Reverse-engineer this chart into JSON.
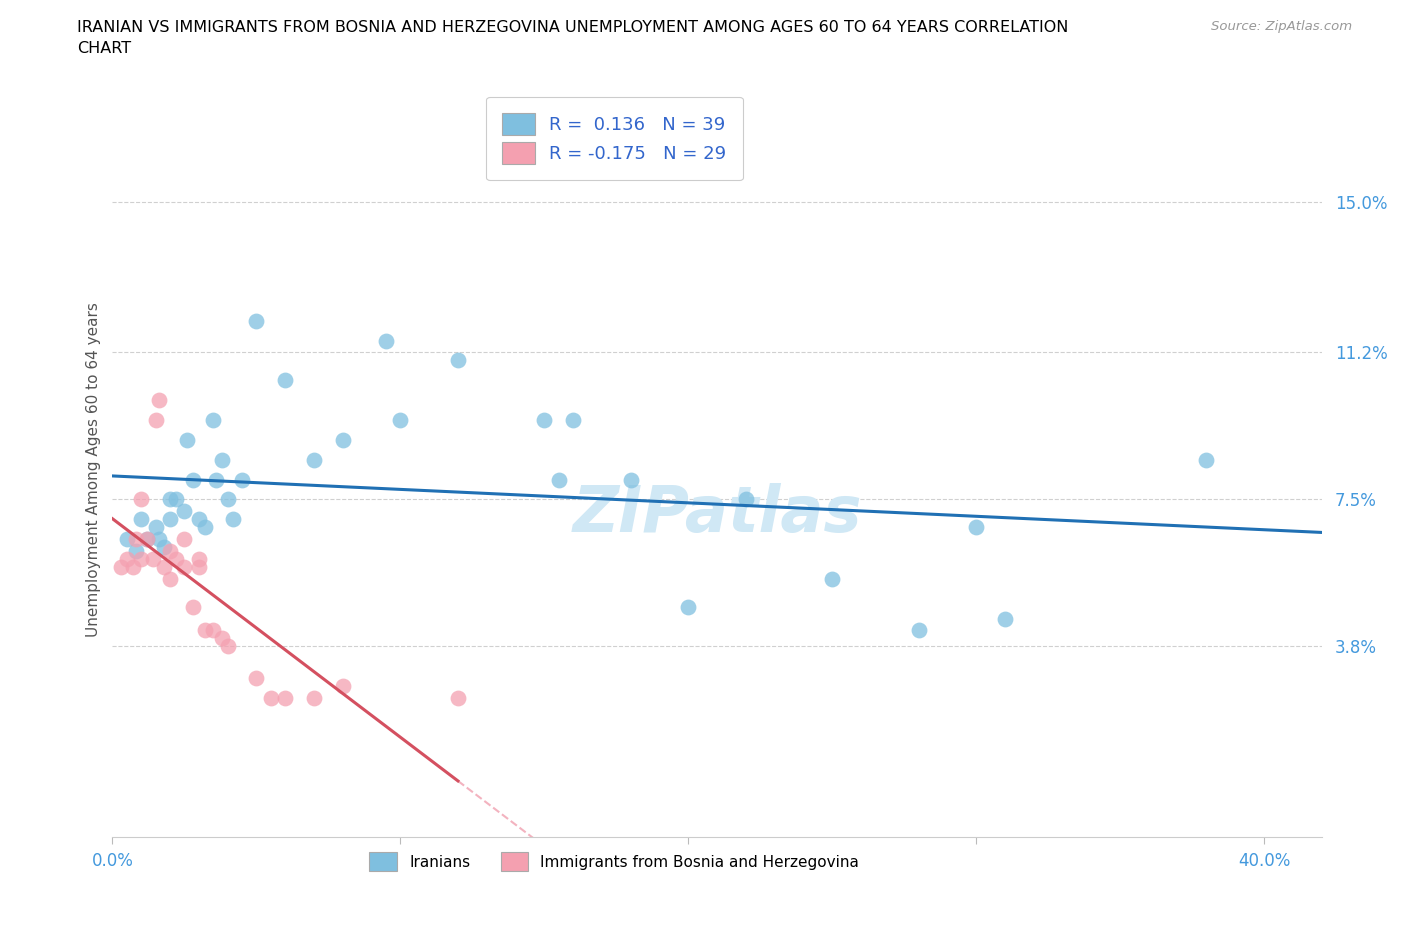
{
  "title_line1": "IRANIAN VS IMMIGRANTS FROM BOSNIA AND HERZEGOVINA UNEMPLOYMENT AMONG AGES 60 TO 64 YEARS CORRELATION",
  "title_line2": "CHART",
  "source": "Source: ZipAtlas.com",
  "ylabel": "Unemployment Among Ages 60 to 64 years",
  "xlim": [
    0.0,
    0.42
  ],
  "ylim": [
    -0.01,
    0.175
  ],
  "xtick_vals": [
    0.0,
    0.1,
    0.2,
    0.3,
    0.4
  ],
  "xtick_labels": [
    "0.0%",
    "",
    "",
    "",
    "40.0%"
  ],
  "ytick_positions": [
    0.038,
    0.075,
    0.112,
    0.15
  ],
  "ytick_labels": [
    "3.8%",
    "7.5%",
    "11.2%",
    "15.0%"
  ],
  "blue_scatter_color": "#7fbfdf",
  "pink_scatter_color": "#f4a0b0",
  "trend_blue_color": "#2070b4",
  "trend_pink_solid_color": "#d45060",
  "trend_pink_dash_color": "#f0a0b0",
  "iranians_R": "0.136",
  "iranians_N": "39",
  "bosnia_R": "-0.175",
  "bosnia_N": "29",
  "legend_label_blue": "Iranians",
  "legend_label_pink": "Immigrants from Bosnia and Herzegovina",
  "iranians_x": [
    0.005,
    0.008,
    0.01,
    0.012,
    0.015,
    0.016,
    0.018,
    0.02,
    0.02,
    0.022,
    0.025,
    0.026,
    0.028,
    0.03,
    0.032,
    0.035,
    0.036,
    0.038,
    0.04,
    0.042,
    0.045,
    0.05,
    0.06,
    0.07,
    0.08,
    0.095,
    0.1,
    0.12,
    0.15,
    0.155,
    0.16,
    0.18,
    0.2,
    0.22,
    0.25,
    0.28,
    0.3,
    0.31,
    0.38
  ],
  "iranians_y": [
    0.065,
    0.062,
    0.07,
    0.065,
    0.068,
    0.065,
    0.063,
    0.07,
    0.075,
    0.075,
    0.072,
    0.09,
    0.08,
    0.07,
    0.068,
    0.095,
    0.08,
    0.085,
    0.075,
    0.07,
    0.08,
    0.12,
    0.105,
    0.085,
    0.09,
    0.115,
    0.095,
    0.11,
    0.095,
    0.08,
    0.095,
    0.08,
    0.048,
    0.075,
    0.055,
    0.042,
    0.068,
    0.045,
    0.085
  ],
  "bosnia_x": [
    0.003,
    0.005,
    0.007,
    0.008,
    0.01,
    0.01,
    0.012,
    0.014,
    0.015,
    0.016,
    0.018,
    0.02,
    0.02,
    0.022,
    0.025,
    0.025,
    0.028,
    0.03,
    0.03,
    0.032,
    0.035,
    0.038,
    0.04,
    0.05,
    0.055,
    0.06,
    0.07,
    0.08,
    0.12
  ],
  "bosnia_y": [
    0.058,
    0.06,
    0.058,
    0.065,
    0.06,
    0.075,
    0.065,
    0.06,
    0.095,
    0.1,
    0.058,
    0.055,
    0.062,
    0.06,
    0.058,
    0.065,
    0.048,
    0.058,
    0.06,
    0.042,
    0.042,
    0.04,
    0.038,
    0.03,
    0.025,
    0.025,
    0.025,
    0.028,
    0.025
  ],
  "watermark_text": "ZIPatlas",
  "watermark_color": "#d0e8f5"
}
